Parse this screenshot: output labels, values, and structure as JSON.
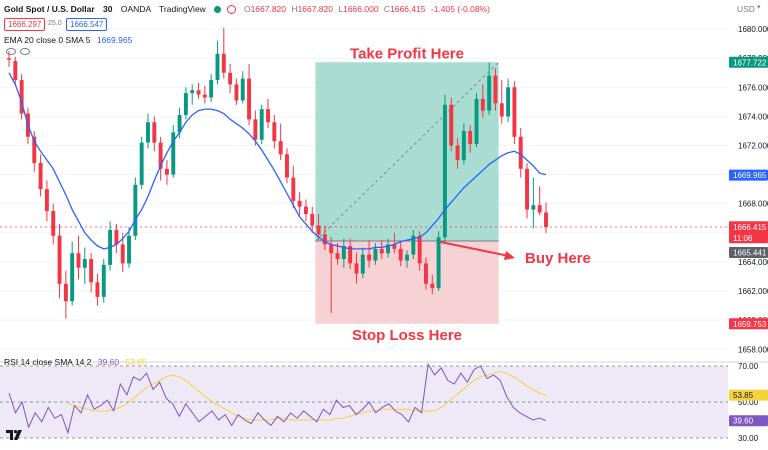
{
  "header": {
    "symbol": "Gold Spot / U.S. Dollar",
    "interval": "30",
    "exchange": "OANDA",
    "platform": "TradingView",
    "ohlc": {
      "O": "1667.820",
      "H": "1667.820",
      "L": "1666.000",
      "C": "1666.415",
      "change": "-1.405 (-0.08%)"
    },
    "sell_price": "1666.297",
    "spread": "25.0",
    "buy_price": "1666.547",
    "ema_label": "EMA 20 close 0 SMA 5",
    "ema_value": "1669.965",
    "currency": "USD"
  },
  "colors": {
    "up": "#089981",
    "down": "#f23645",
    "ema": "#2962ff",
    "profit_zone": "#a9ddd2",
    "loss_zone": "#f7d2d4",
    "rsi_line": "#7e57c2",
    "rsi_ma": "#f5d33f",
    "annotation": "#f23645"
  },
  "annotations": {
    "take_profit": "Take Profit Here",
    "stop_loss": "Stop Loss Here",
    "buy": "Buy Here"
  },
  "price_badges": {
    "target": "1677.722",
    "ema": "1669.965",
    "last": "1666.415",
    "countdown": "11:06",
    "entry": "1665.441",
    "stop": "1659.753"
  },
  "rsi": {
    "label": "RSI 14 close SMA 14 2",
    "value": "39.60",
    "ma_value": "53.85"
  },
  "chart_data": [
    {
      "type": "candlestick",
      "title": "Gold Spot / U.S. Dollar · 30 · OANDA",
      "ylabel": "USD",
      "ylim": [
        1657.4,
        1680.9
      ],
      "yticks": [
        1658.0,
        1660.0,
        1662.0,
        1664.0,
        1666.0,
        1668.0,
        1670.0,
        1672.0,
        1674.0,
        1676.0,
        1678.0,
        1680.0
      ],
      "candles": [
        [
          1678.0,
          1678.5,
          1677.4,
          1677.9
        ],
        [
          1677.8,
          1678.1,
          1676.2,
          1676.5
        ],
        [
          1676.5,
          1676.9,
          1673.8,
          1674.2
        ],
        [
          1674.2,
          1674.6,
          1672.1,
          1672.6
        ],
        [
          1672.6,
          1673.0,
          1670.2,
          1670.8
        ],
        [
          1670.8,
          1671.4,
          1668.5,
          1669.0
        ],
        [
          1669.0,
          1669.6,
          1666.8,
          1667.5
        ],
        [
          1667.5,
          1668.0,
          1665.2,
          1665.8
        ],
        [
          1665.8,
          1666.6,
          1661.5,
          1662.5
        ],
        [
          1662.5,
          1663.4,
          1660.1,
          1661.3
        ],
        [
          1661.3,
          1665.4,
          1661.0,
          1664.6
        ],
        [
          1664.6,
          1665.8,
          1662.8,
          1663.6
        ],
        [
          1663.6,
          1665.0,
          1662.5,
          1664.2
        ],
        [
          1664.2,
          1664.6,
          1661.9,
          1662.6
        ],
        [
          1662.6,
          1663.2,
          1661.0,
          1661.6
        ],
        [
          1661.6,
          1664.2,
          1661.2,
          1663.8
        ],
        [
          1663.8,
          1666.8,
          1663.4,
          1666.2
        ],
        [
          1666.2,
          1666.6,
          1664.6,
          1665.2
        ],
        [
          1665.2,
          1666.0,
          1663.3,
          1663.9
        ],
        [
          1663.9,
          1666.4,
          1663.6,
          1665.8
        ],
        [
          1665.8,
          1669.8,
          1665.5,
          1669.3
        ],
        [
          1669.3,
          1672.6,
          1669.0,
          1672.2
        ],
        [
          1672.2,
          1674.2,
          1671.8,
          1673.6
        ],
        [
          1673.6,
          1674.0,
          1671.6,
          1672.2
        ],
        [
          1672.2,
          1672.6,
          1669.6,
          1670.4
        ],
        [
          1670.4,
          1671.0,
          1669.3,
          1670.0
        ],
        [
          1670.0,
          1673.4,
          1669.8,
          1672.9
        ],
        [
          1672.9,
          1674.6,
          1672.5,
          1674.1
        ],
        [
          1674.1,
          1676.0,
          1673.8,
          1675.6
        ],
        [
          1675.6,
          1676.2,
          1674.8,
          1675.8
        ],
        [
          1675.8,
          1676.3,
          1675.2,
          1675.5
        ],
        [
          1675.5,
          1676.1,
          1674.9,
          1675.3
        ],
        [
          1675.3,
          1676.9,
          1675.0,
          1676.5
        ],
        [
          1676.5,
          1679.2,
          1676.2,
          1678.3
        ],
        [
          1678.3,
          1680.1,
          1676.6,
          1677.0
        ],
        [
          1677.0,
          1677.6,
          1675.6,
          1676.2
        ],
        [
          1676.2,
          1676.6,
          1674.8,
          1675.1
        ],
        [
          1675.1,
          1677.1,
          1674.9,
          1676.6
        ],
        [
          1676.6,
          1677.6,
          1673.4,
          1673.8
        ],
        [
          1673.8,
          1674.4,
          1672.0,
          1672.4
        ],
        [
          1672.4,
          1674.8,
          1672.1,
          1674.5
        ],
        [
          1674.5,
          1675.2,
          1673.2,
          1673.6
        ],
        [
          1673.6,
          1674.1,
          1671.8,
          1672.3
        ],
        [
          1672.3,
          1673.5,
          1671.0,
          1671.4
        ],
        [
          1671.4,
          1671.8,
          1669.4,
          1669.8
        ],
        [
          1669.8,
          1670.6,
          1667.7,
          1668.2
        ],
        [
          1668.2,
          1668.8,
          1667.2,
          1667.8
        ],
        [
          1667.8,
          1668.3,
          1666.8,
          1667.3
        ],
        [
          1667.3,
          1667.8,
          1666.0,
          1666.5
        ],
        [
          1666.5,
          1667.3,
          1665.5,
          1665.9
        ],
        [
          1665.9,
          1666.5,
          1664.8,
          1665.2
        ],
        [
          1665.2,
          1665.7,
          1660.5,
          1664.6
        ],
        [
          1664.6,
          1665.3,
          1663.8,
          1664.2
        ],
        [
          1664.2,
          1665.6,
          1663.6,
          1665.1
        ],
        [
          1665.1,
          1665.6,
          1663.5,
          1663.9
        ],
        [
          1663.9,
          1664.6,
          1662.5,
          1663.2
        ],
        [
          1663.2,
          1665.0,
          1662.9,
          1664.5
        ],
        [
          1664.5,
          1665.5,
          1663.6,
          1664.1
        ],
        [
          1664.1,
          1665.3,
          1663.8,
          1664.9
        ],
        [
          1664.9,
          1665.5,
          1664.2,
          1664.6
        ],
        [
          1664.6,
          1665.6,
          1664.3,
          1665.2
        ],
        [
          1665.2,
          1666.0,
          1664.6,
          1664.9
        ],
        [
          1664.9,
          1665.4,
          1663.7,
          1664.1
        ],
        [
          1664.1,
          1664.8,
          1663.6,
          1664.5
        ],
        [
          1664.5,
          1666.2,
          1664.2,
          1665.8
        ],
        [
          1665.8,
          1666.1,
          1663.4,
          1663.9
        ],
        [
          1663.9,
          1664.3,
          1662.1,
          1662.5
        ],
        [
          1662.5,
          1663.1,
          1661.8,
          1662.2
        ],
        [
          1662.2,
          1666.1,
          1662.0,
          1665.7
        ],
        [
          1665.7,
          1675.5,
          1665.4,
          1674.8
        ],
        [
          1674.8,
          1675.3,
          1671.6,
          1672.0
        ],
        [
          1672.0,
          1672.5,
          1670.4,
          1671.0
        ],
        [
          1671.0,
          1673.5,
          1670.7,
          1673.0
        ],
        [
          1673.0,
          1673.4,
          1671.5,
          1672.1
        ],
        [
          1672.1,
          1675.6,
          1671.9,
          1675.2
        ],
        [
          1675.2,
          1676.2,
          1673.9,
          1674.4
        ],
        [
          1674.4,
          1677.7,
          1674.1,
          1676.8
        ],
        [
          1676.8,
          1677.3,
          1674.4,
          1674.9
        ],
        [
          1674.9,
          1676.5,
          1673.5,
          1674.0
        ],
        [
          1674.0,
          1676.6,
          1673.6,
          1676.0
        ],
        [
          1676.0,
          1676.4,
          1672.1,
          1672.6
        ],
        [
          1672.6,
          1673.2,
          1669.8,
          1670.4
        ],
        [
          1670.4,
          1670.8,
          1667.0,
          1667.6
        ],
        [
          1667.6,
          1669.8,
          1666.3,
          1667.9
        ],
        [
          1667.9,
          1669.2,
          1667.2,
          1667.4
        ],
        [
          1667.4,
          1668.1,
          1666.0,
          1666.4
        ]
      ],
      "ema20": [
        1677.0,
        1676.2,
        1675.0,
        1673.4,
        1672.3,
        1671.6,
        1671.0,
        1670.4,
        1669.5,
        1668.6,
        1667.6,
        1666.8,
        1666.0,
        1665.5,
        1665.1,
        1664.9,
        1665.0,
        1665.2,
        1665.6,
        1666.1,
        1666.9,
        1667.6,
        1668.5,
        1669.6,
        1670.6,
        1671.5,
        1672.3,
        1672.9,
        1673.6,
        1674.1,
        1674.4,
        1674.5,
        1674.5,
        1674.4,
        1674.2,
        1673.8,
        1673.5,
        1673.2,
        1672.8,
        1672.3,
        1671.7,
        1671.0,
        1670.3,
        1669.5,
        1668.7,
        1667.9,
        1667.1,
        1666.6,
        1666.1,
        1665.7,
        1665.4,
        1665.2,
        1665.1,
        1665.0,
        1664.9,
        1664.9,
        1664.9,
        1664.9,
        1665.0,
        1665.0,
        1665.1,
        1665.2,
        1665.4,
        1665.5,
        1665.6,
        1665.7,
        1666.0,
        1666.5,
        1667.0,
        1667.6,
        1668.1,
        1668.6,
        1669.1,
        1669.5,
        1669.9,
        1670.3,
        1670.7,
        1671.0,
        1671.3,
        1671.5,
        1671.6,
        1671.4,
        1671.0,
        1670.6,
        1670.1,
        1670.0
      ],
      "trade": {
        "entry": 1665.441,
        "target": 1677.722,
        "stop": 1659.753,
        "start_index": 49,
        "end_index": 77,
        "entry_index": 68
      }
    },
    {
      "type": "line",
      "title": "RSI 14 close SMA 14 2",
      "ylim": [
        30,
        70
      ],
      "yticks": [
        30.0,
        40.0,
        50.0,
        70.0
      ],
      "bands": [
        30,
        50,
        70
      ],
      "series": [
        {
          "name": "RSI",
          "values": [
            55,
            44,
            50,
            36,
            44,
            39,
            47,
            41,
            43,
            33,
            48,
            44,
            54,
            46,
            48,
            51,
            45,
            60,
            54,
            64,
            62,
            66,
            57,
            61,
            52,
            49,
            42,
            49,
            44,
            39,
            42,
            45,
            40,
            43,
            37,
            43,
            40,
            38,
            44,
            40,
            37,
            42,
            39,
            44,
            41,
            45,
            42,
            39,
            46,
            43,
            51,
            47,
            48,
            43,
            46,
            50,
            44,
            47,
            49,
            45,
            43,
            39,
            47,
            44,
            71,
            65,
            69,
            62,
            60,
            66,
            61,
            68,
            70,
            63,
            65,
            62,
            53,
            47,
            44,
            42,
            40,
            41,
            39.6
          ]
        },
        {
          "name": "RSI-based MA",
          "values": [
            49,
            48,
            47,
            46,
            45,
            45,
            45,
            46,
            47,
            49,
            52,
            55,
            58,
            60,
            62,
            64,
            65,
            64,
            62,
            59,
            56,
            53,
            50,
            48,
            46,
            44,
            42,
            41,
            40,
            40,
            40,
            40,
            41,
            41,
            40,
            40,
            40,
            40,
            40,
            40,
            40,
            41,
            41,
            42,
            43,
            44,
            45,
            45,
            46,
            46,
            46,
            46,
            46,
            45,
            45,
            45,
            45,
            47,
            50,
            53,
            56,
            59,
            62,
            64,
            65,
            66,
            67,
            66,
            64,
            62,
            59,
            57,
            55,
            53.85
          ]
        }
      ]
    }
  ]
}
